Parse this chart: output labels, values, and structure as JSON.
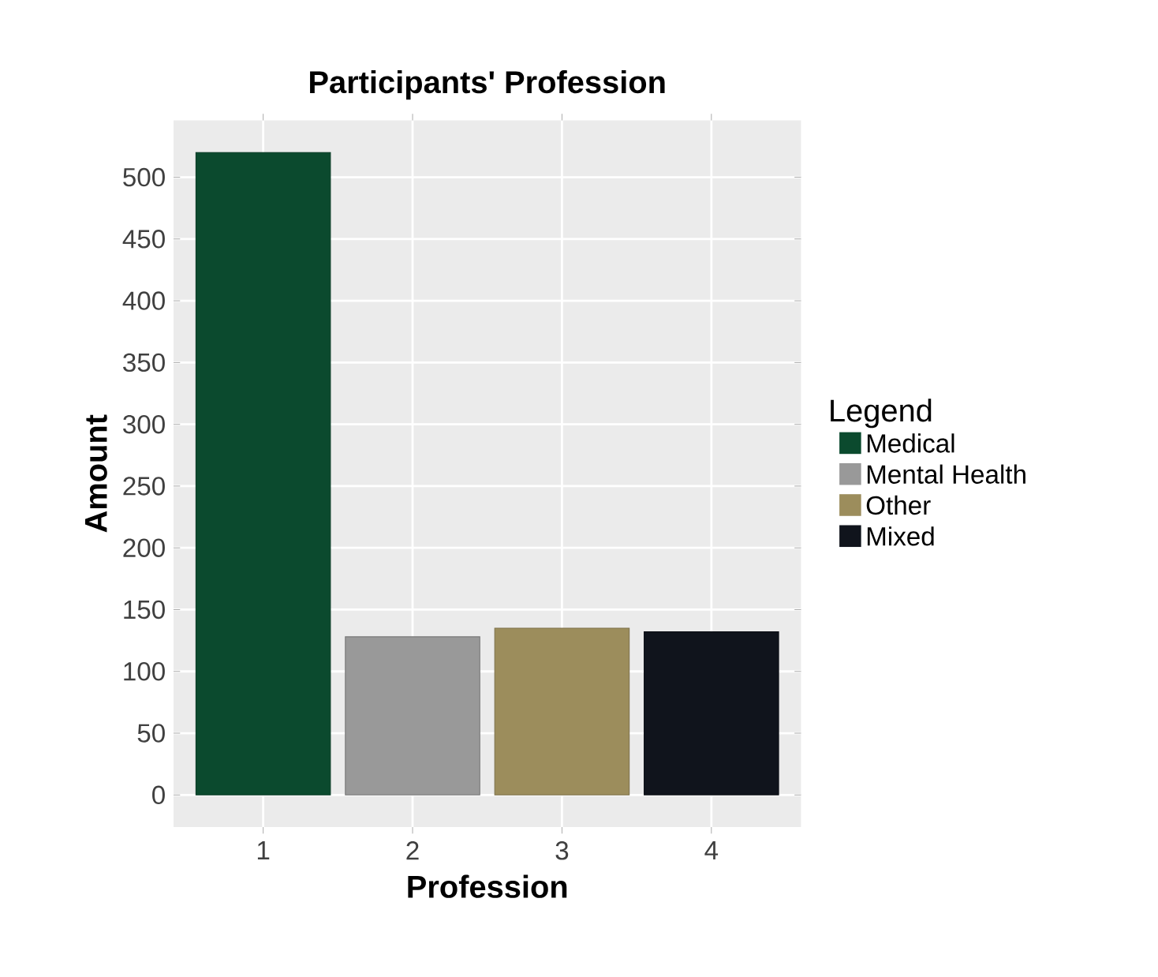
{
  "chart_data": {
    "type": "bar",
    "title": "Participants' Profession",
    "xlabel": "Profession",
    "ylabel": "Amount",
    "legend_title": "Legend",
    "categories": [
      "1",
      "2",
      "3",
      "4"
    ],
    "series": [
      {
        "name": "Medical",
        "color": "#0b4a2e",
        "values": [
          520,
          null,
          null,
          null
        ]
      },
      {
        "name": "Mental Health",
        "color": "#999999",
        "values": [
          null,
          128,
          null,
          null
        ]
      },
      {
        "name": "Other",
        "color": "#9c8d5c",
        "values": [
          null,
          null,
          135,
          null
        ]
      },
      {
        "name": "Mixed",
        "color": "#10141c",
        "values": [
          null,
          null,
          null,
          132
        ]
      }
    ],
    "ylim": [
      -26,
      546
    ],
    "yticks": [
      0,
      50,
      100,
      150,
      200,
      250,
      300,
      350,
      400,
      450,
      500
    ],
    "grid": true,
    "legend": "right"
  }
}
